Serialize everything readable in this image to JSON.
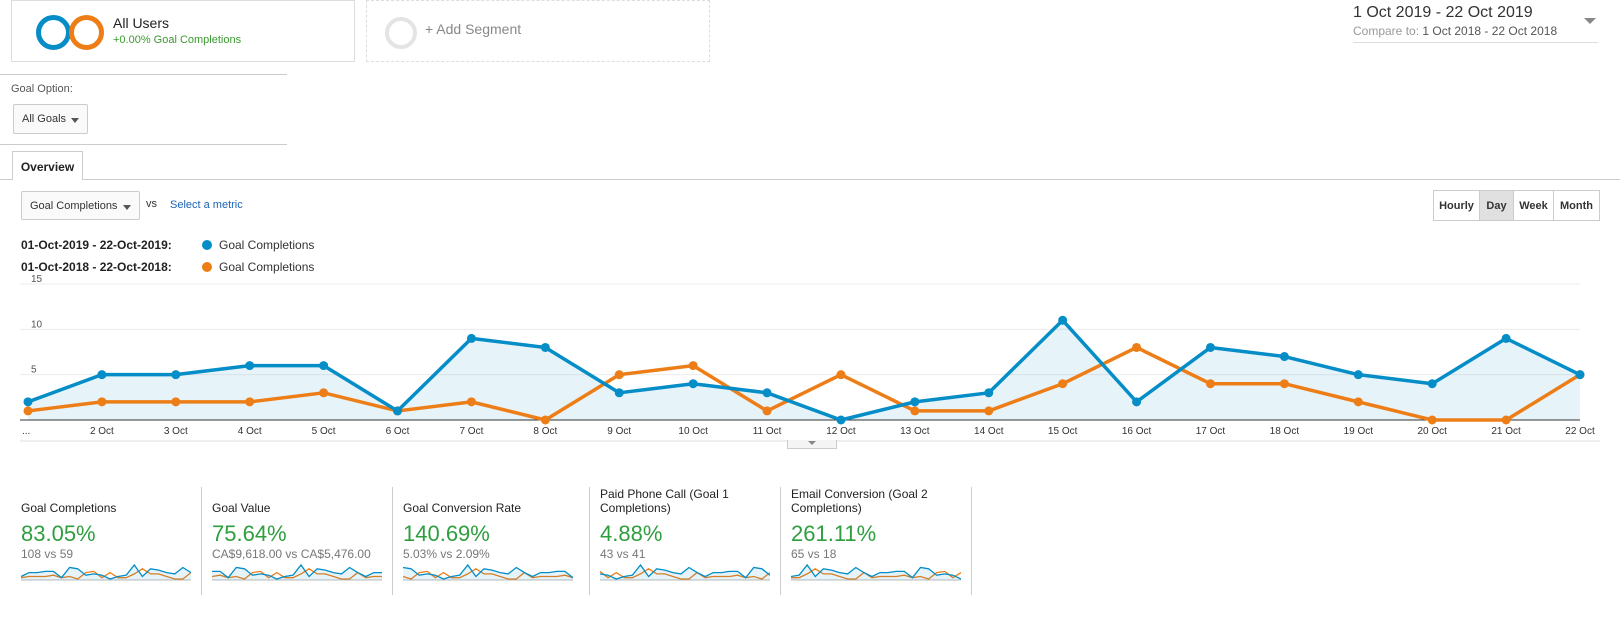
{
  "segments": {
    "active": {
      "title": "All Users",
      "subtitle": "+0.00% Goal Completions",
      "colors": [
        "#058dc7",
        "#ed7e17"
      ]
    },
    "add_label": "+ Add Segment"
  },
  "date_range": {
    "main": "1 Oct 2019 - 22 Oct 2019",
    "compare_label": "Compare to:",
    "compare_value": "1 Oct 2018 - 22 Oct 2018"
  },
  "goal_option": {
    "label": "Goal Option:",
    "selected": "All Goals"
  },
  "tabs": [
    {
      "label": "Overview",
      "active": true
    }
  ],
  "metric_controls": {
    "metric": "Goal Completions",
    "vs": "vs",
    "select_metric": "Select a metric"
  },
  "granularity": [
    "Hourly",
    "Day",
    "Week",
    "Month"
  ],
  "granularity_active": "Day",
  "legend": [
    {
      "range": "01-Oct-2019 - 22-Oct-2019:",
      "name": "Goal Completions",
      "color": "#058dc7"
    },
    {
      "range": "01-Oct-2018 - 22-Oct-2018:",
      "name": "Goal Completions",
      "color": "#ed7e17"
    }
  ],
  "chart_data": {
    "type": "line",
    "x": [
      "...",
      "2 Oct",
      "3 Oct",
      "4 Oct",
      "5 Oct",
      "6 Oct",
      "7 Oct",
      "8 Oct",
      "9 Oct",
      "10 Oct",
      "11 Oct",
      "12 Oct",
      "13 Oct",
      "14 Oct",
      "15 Oct",
      "16 Oct",
      "17 Oct",
      "18 Oct",
      "19 Oct",
      "20 Oct",
      "21 Oct",
      "22 Oct"
    ],
    "yticks": [
      5,
      10,
      15
    ],
    "ylim": [
      0,
      15
    ],
    "series": [
      {
        "values": [
          2,
          5,
          5,
          6,
          6,
          1,
          9,
          8,
          3,
          4,
          3,
          0,
          2,
          3,
          11,
          2,
          8,
          7,
          5,
          4,
          9,
          5
        ],
        "color": "#058dc7",
        "area": true
      },
      {
        "values": [
          1,
          2,
          2,
          2,
          3,
          1,
          2,
          0,
          5,
          6,
          1,
          5,
          1,
          1,
          4,
          8,
          4,
          4,
          2,
          0,
          0,
          5
        ],
        "color": "#ed7e17",
        "area": false
      }
    ]
  },
  "scorecards": [
    {
      "label": "Goal Completions",
      "value": "83.05%",
      "compare": "108 vs 59"
    },
    {
      "label": "Goal Value",
      "value": "75.64%",
      "compare": "CA$9,618.00 vs CA$5,476.00"
    },
    {
      "label": "Goal Conversion Rate",
      "value": "140.69%",
      "compare": "5.03% vs 2.09%"
    },
    {
      "label": "Paid Phone Call (Goal 1 Completions)",
      "value": "4.88%",
      "compare": "43 vs 41"
    },
    {
      "label": "Email Conversion (Goal 2 Completions)",
      "value": "261.11%",
      "compare": "65 vs 18"
    }
  ]
}
